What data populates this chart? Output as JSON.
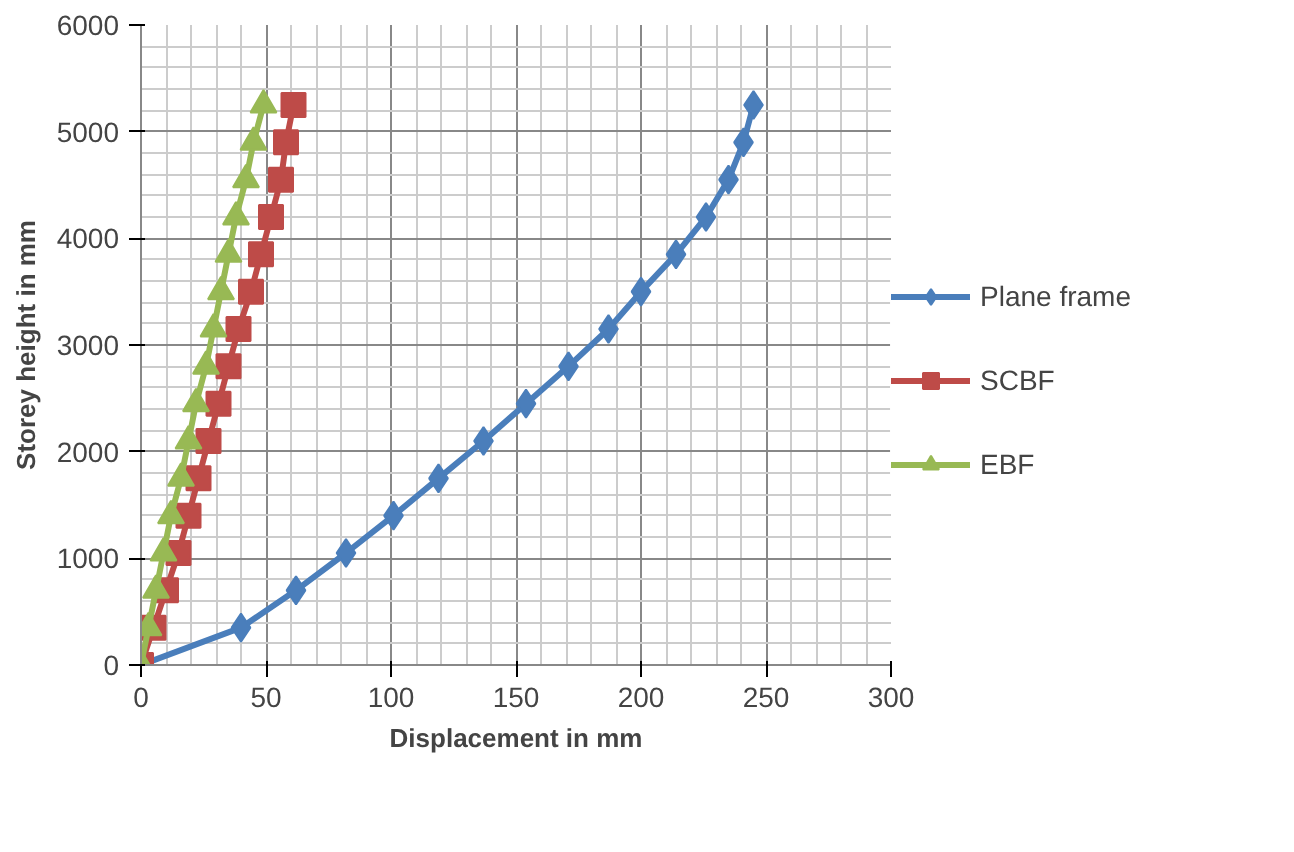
{
  "chart_data": {
    "type": "line",
    "xlabel": "Displacement in mm",
    "ylabel": "Storey height in mm",
    "xlim": [
      0,
      300
    ],
    "xticks": [
      0,
      50,
      100,
      150,
      200,
      250,
      300
    ],
    "ylim": [
      0,
      6000
    ],
    "yticks": [
      0,
      1000,
      2000,
      3000,
      4000,
      5000,
      6000
    ],
    "grid": true,
    "legend": "right",
    "series": [
      {
        "name": "Plane frame",
        "color": "#4a7ebb",
        "marker": "diamond",
        "x": [
          0,
          40,
          62,
          82,
          101,
          119,
          137,
          154,
          171,
          187,
          200,
          214,
          226,
          235,
          241,
          245
        ],
        "values": [
          0,
          350,
          700,
          1050,
          1400,
          1750,
          2100,
          2450,
          2800,
          3150,
          3500,
          3850,
          4200,
          4550,
          4900,
          5250
        ]
      },
      {
        "name": "SCBF",
        "color": "#be4b48",
        "marker": "square",
        "x": [
          0,
          5,
          10,
          15,
          19,
          23,
          27,
          31,
          35,
          39,
          44,
          48,
          52,
          56,
          58,
          61
        ],
        "values": [
          0,
          350,
          700,
          1050,
          1400,
          1750,
          2100,
          2450,
          2800,
          3150,
          3500,
          3850,
          4200,
          4550,
          4900,
          5250
        ]
      },
      {
        "name": "EBF",
        "color": "#98b954",
        "marker": "triangle",
        "x": [
          0,
          3,
          6,
          9,
          12,
          16,
          19,
          22,
          26,
          29,
          32,
          35,
          38,
          42,
          45,
          49
        ],
        "values": [
          0,
          350,
          700,
          1050,
          1400,
          1750,
          2100,
          2450,
          2800,
          3150,
          3500,
          3850,
          4200,
          4550,
          4900,
          5250
        ]
      }
    ]
  }
}
